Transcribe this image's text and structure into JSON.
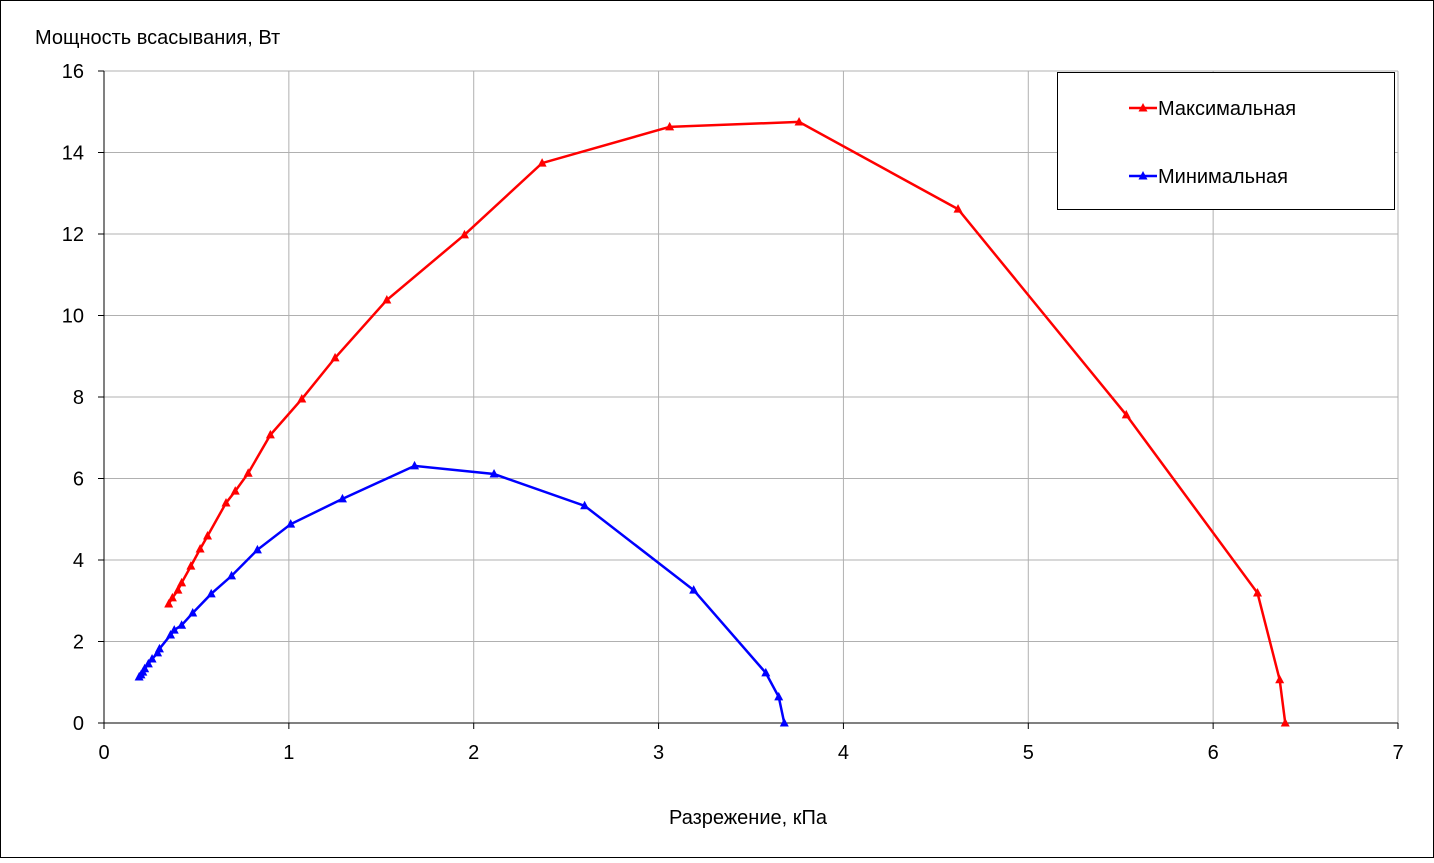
{
  "chart_data": {
    "type": "line",
    "y_label": "Мощность всасывания, Вт",
    "x_label": "Разрежение, кПа",
    "xlim": [
      0,
      7
    ],
    "xticks": [
      0,
      1,
      2,
      3,
      4,
      5,
      6,
      7
    ],
    "ylim": [
      0,
      16
    ],
    "yticks": [
      0,
      2,
      4,
      6,
      8,
      10,
      12,
      14,
      16
    ],
    "grid": true,
    "legend": "upper right",
    "series": [
      {
        "name": "Максимальная",
        "color": "#ff0000",
        "x": [
          0.35,
          0.37,
          0.4,
          0.42,
          0.47,
          0.52,
          0.56,
          0.66,
          0.71,
          0.78,
          0.9,
          1.07,
          1.25,
          1.53,
          1.95,
          2.37,
          3.06,
          3.76,
          4.62,
          5.53,
          6.24,
          6.36,
          6.39
        ],
        "values": [
          2.92,
          3.07,
          3.26,
          3.44,
          3.85,
          4.27,
          4.59,
          5.4,
          5.69,
          6.13,
          7.07,
          7.95,
          8.96,
          10.38,
          11.98,
          13.74,
          14.63,
          14.75,
          12.61,
          7.56,
          3.19,
          1.06,
          0
        ]
      },
      {
        "name": "Минимальная",
        "color": "#0000ff",
        "x": [
          0.19,
          0.2,
          0.21,
          0.22,
          0.24,
          0.26,
          0.29,
          0.3,
          0.36,
          0.38,
          0.42,
          0.48,
          0.58,
          0.69,
          0.83,
          1.01,
          1.29,
          1.68,
          2.11,
          2.6,
          3.19,
          3.58,
          3.65,
          3.68
        ],
        "values": [
          1.13,
          1.18,
          1.25,
          1.33,
          1.45,
          1.57,
          1.72,
          1.82,
          2.16,
          2.28,
          2.4,
          2.7,
          3.17,
          3.61,
          4.25,
          4.88,
          5.5,
          6.31,
          6.11,
          5.33,
          3.26,
          1.23,
          0.64,
          0
        ]
      }
    ]
  }
}
